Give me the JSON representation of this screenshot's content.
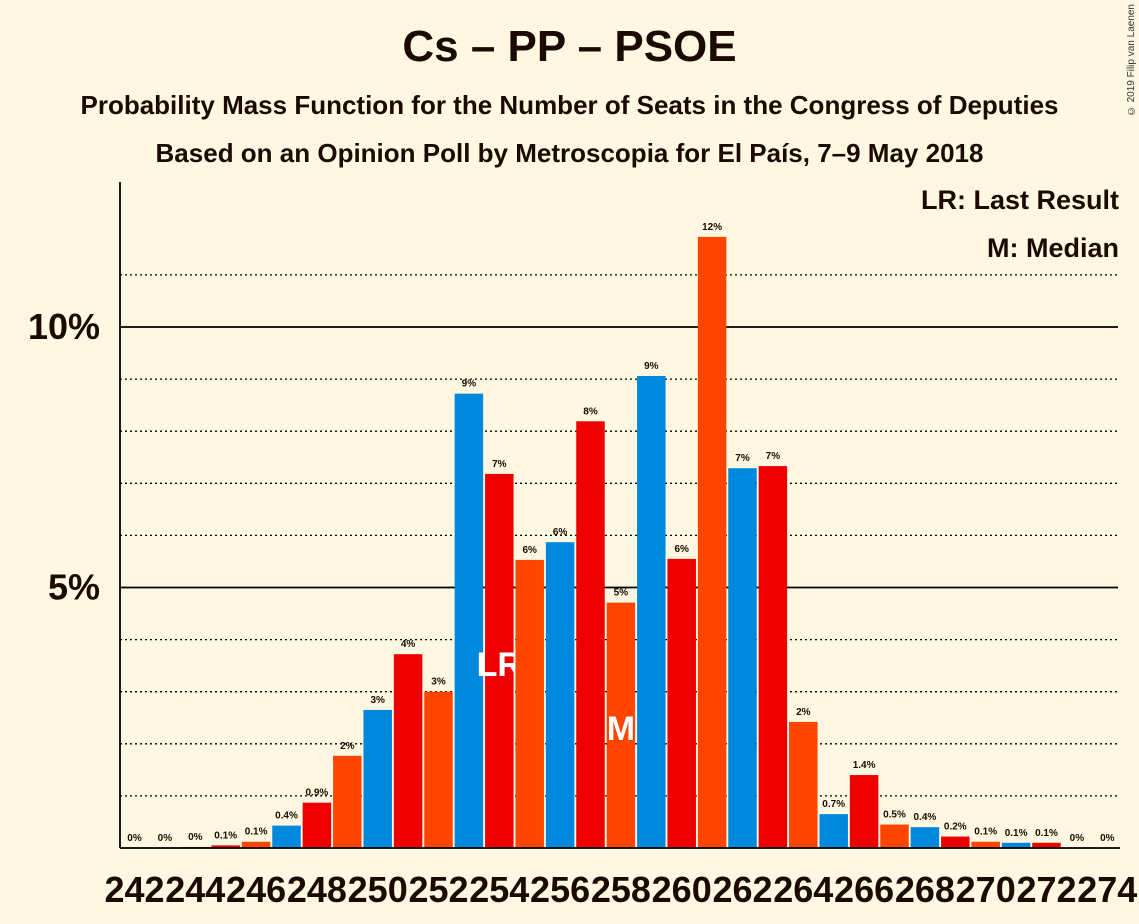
{
  "title": "Cs – PP – PSOE",
  "subtitle1": "Probability Mass Function for the Number of Seats in the Congress of Deputies",
  "subtitle2": "Based on an Opinion Poll by Metroscopia for El País, 7–9 May 2018",
  "copyright": "© 2019 Filip van Laenen",
  "legend": {
    "last_result": "LR: Last Result",
    "median": "M: Median"
  },
  "colors": {
    "background": "#FEF8E3",
    "cs": "#FF4500",
    "pp": "#0088DD",
    "psoe": "#EE0000"
  },
  "chart_data": {
    "type": "bar",
    "ylim": [
      0,
      12.8
    ],
    "y_ticks": [
      {
        "value": 5,
        "label": "5%"
      },
      {
        "value": 10,
        "label": "10%"
      }
    ],
    "x_tick_labels": [
      "242",
      "244",
      "246",
      "248",
      "250",
      "252",
      "254",
      "256",
      "258",
      "260",
      "262",
      "264",
      "266",
      "268",
      "270",
      "272",
      "274"
    ],
    "bars": [
      {
        "seats": 242,
        "value": 0,
        "label": "0%",
        "color": "cs"
      },
      {
        "seats": 243,
        "value": 0,
        "label": "0%",
        "color": "cs"
      },
      {
        "seats": 244,
        "value": 0.02,
        "label": "0%",
        "color": "cs"
      },
      {
        "seats": 245,
        "value": 0.05,
        "label": "0.1%",
        "color": "psoe"
      },
      {
        "seats": 246,
        "value": 0.12,
        "label": "0.1%",
        "color": "cs"
      },
      {
        "seats": 247,
        "value": 0.43,
        "label": "0.4%",
        "color": "pp"
      },
      {
        "seats": 248,
        "value": 0.87,
        "label": "0.9%",
        "color": "psoe"
      },
      {
        "seats": 249,
        "value": 1.77,
        "label": "2%",
        "color": "cs"
      },
      {
        "seats": 250,
        "value": 2.65,
        "label": "3%",
        "color": "pp"
      },
      {
        "seats": 251,
        "value": 3.72,
        "label": "4%",
        "color": "psoe"
      },
      {
        "seats": 252,
        "value": 3.0,
        "label": "3%",
        "color": "cs"
      },
      {
        "seats": 253,
        "value": 8.72,
        "label": "9%",
        "color": "pp"
      },
      {
        "seats": 254,
        "value": 7.18,
        "label": "7%",
        "color": "psoe",
        "annotation": "LR"
      },
      {
        "seats": 255,
        "value": 5.53,
        "label": "6%",
        "color": "cs"
      },
      {
        "seats": 256,
        "value": 5.87,
        "label": "6%",
        "color": "pp"
      },
      {
        "seats": 257,
        "value": 8.19,
        "label": "8%",
        "color": "psoe"
      },
      {
        "seats": 258,
        "value": 4.71,
        "label": "5%",
        "color": "cs",
        "annotation": "M"
      },
      {
        "seats": 259,
        "value": 9.06,
        "label": "9%",
        "color": "pp"
      },
      {
        "seats": 260,
        "value": 5.55,
        "label": "6%",
        "color": "psoe"
      },
      {
        "seats": 261,
        "value": 11.73,
        "label": "12%",
        "color": "cs"
      },
      {
        "seats": 262,
        "value": 7.29,
        "label": "7%",
        "color": "pp"
      },
      {
        "seats": 263,
        "value": 7.33,
        "label": "7%",
        "color": "psoe"
      },
      {
        "seats": 264,
        "value": 2.42,
        "label": "2%",
        "color": "cs"
      },
      {
        "seats": 265,
        "value": 0.65,
        "label": "0.7%",
        "color": "pp"
      },
      {
        "seats": 266,
        "value": 1.4,
        "label": "1.4%",
        "color": "psoe"
      },
      {
        "seats": 267,
        "value": 0.45,
        "label": "0.5%",
        "color": "cs"
      },
      {
        "seats": 268,
        "value": 0.4,
        "label": "0.4%",
        "color": "pp"
      },
      {
        "seats": 269,
        "value": 0.22,
        "label": "0.2%",
        "color": "psoe"
      },
      {
        "seats": 270,
        "value": 0.12,
        "label": "0.1%",
        "color": "cs"
      },
      {
        "seats": 271,
        "value": 0.1,
        "label": "0.1%",
        "color": "pp"
      },
      {
        "seats": 272,
        "value": 0.1,
        "label": "0.1%",
        "color": "psoe"
      },
      {
        "seats": 273,
        "value": 0,
        "label": "0%",
        "color": "cs"
      },
      {
        "seats": 274,
        "value": 0,
        "label": "0%",
        "color": "cs"
      }
    ]
  }
}
